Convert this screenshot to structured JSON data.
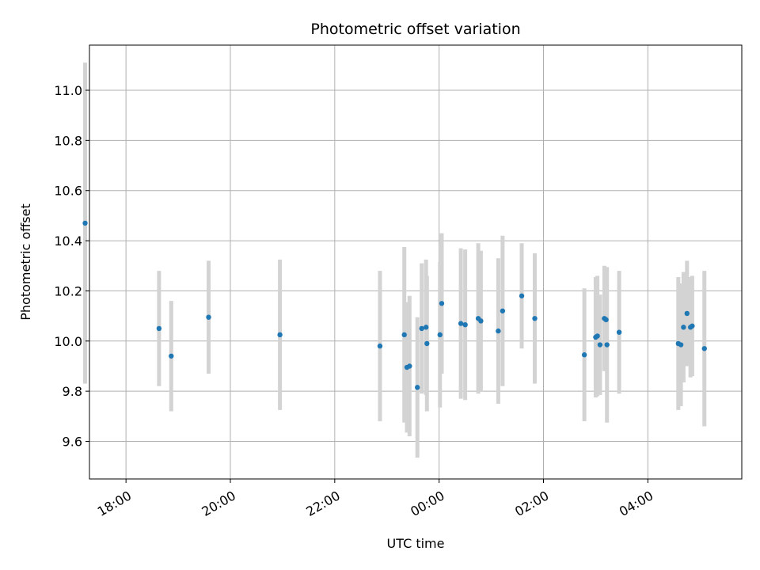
{
  "chart_data": {
    "type": "scatter",
    "title": "Photometric offset variation",
    "xlabel": "UTC time",
    "ylabel": "Photometric offset",
    "xlim": [
      "17:18",
      "05:48"
    ],
    "ylim": [
      9.45,
      11.18
    ],
    "grid": true,
    "x_tick_labels": [
      "18:00",
      "20:00",
      "22:00",
      "00:00",
      "02:00",
      "04:00"
    ],
    "x_tick_hours": [
      18,
      20,
      22,
      24,
      26,
      28
    ],
    "y_ticks": [
      9.6,
      9.8,
      10.0,
      10.2,
      10.4,
      10.6,
      10.8,
      11.0
    ],
    "y_tick_labels": [
      "9.6",
      "9.8",
      "10.0",
      "10.2",
      "10.4",
      "10.6",
      "10.8",
      "11.0"
    ],
    "colors": {
      "point": "#1f77b4",
      "errorbar": "#d3d3d3",
      "grid": "#b0b0b0"
    },
    "points": [
      {
        "t": "17:13",
        "y": 10.47,
        "err": 0.64
      },
      {
        "t": "18:38",
        "y": 10.05,
        "err": 0.23
      },
      {
        "t": "18:52",
        "y": 9.94,
        "err": 0.22
      },
      {
        "t": "19:35",
        "y": 10.095,
        "err": 0.225
      },
      {
        "t": "20:57",
        "y": 10.025,
        "err": 0.3
      },
      {
        "t": "22:52",
        "y": 9.98,
        "err": 0.3
      },
      {
        "t": "23:20",
        "y": 10.025,
        "err": 0.35
      },
      {
        "t": "23:23",
        "y": 9.895,
        "err": 0.26
      },
      {
        "t": "23:26",
        "y": 9.9,
        "err": 0.28
      },
      {
        "t": "23:35",
        "y": 9.815,
        "err": 0.28
      },
      {
        "t": "23:40",
        "y": 10.05,
        "err": 0.26
      },
      {
        "t": "23:45",
        "y": 10.055,
        "err": 0.27
      },
      {
        "t": "23:46",
        "y": 9.99,
        "err": 0.27
      },
      {
        "t": "00:01",
        "y": 10.025,
        "err": 0.29
      },
      {
        "t": "00:03",
        "y": 10.15,
        "err": 0.28
      },
      {
        "t": "00:25",
        "y": 10.07,
        "err": 0.3
      },
      {
        "t": "00:30",
        "y": 10.065,
        "err": 0.3
      },
      {
        "t": "00:45",
        "y": 10.09,
        "err": 0.3
      },
      {
        "t": "00:48",
        "y": 10.08,
        "err": 0.28
      },
      {
        "t": "01:08",
        "y": 10.04,
        "err": 0.29
      },
      {
        "t": "01:13",
        "y": 10.12,
        "err": 0.3
      },
      {
        "t": "01:35",
        "y": 10.18,
        "err": 0.21
      },
      {
        "t": "01:50",
        "y": 10.09,
        "err": 0.26
      },
      {
        "t": "02:47",
        "y": 9.945,
        "err": 0.265
      },
      {
        "t": "03:00",
        "y": 10.015,
        "err": 0.24
      },
      {
        "t": "03:02",
        "y": 10.02,
        "err": 0.24
      },
      {
        "t": "03:05",
        "y": 9.985,
        "err": 0.2
      },
      {
        "t": "03:10",
        "y": 10.09,
        "err": 0.21
      },
      {
        "t": "03:12",
        "y": 10.085,
        "err": 0.2
      },
      {
        "t": "03:13",
        "y": 9.985,
        "err": 0.31
      },
      {
        "t": "03:27",
        "y": 10.035,
        "err": 0.245
      },
      {
        "t": "04:35",
        "y": 9.99,
        "err": 0.265
      },
      {
        "t": "04:38",
        "y": 9.985,
        "err": 0.245
      },
      {
        "t": "04:41",
        "y": 10.055,
        "err": 0.22
      },
      {
        "t": "04:45",
        "y": 10.11,
        "err": 0.21
      },
      {
        "t": "04:49",
        "y": 10.055,
        "err": 0.2
      },
      {
        "t": "04:51",
        "y": 10.06,
        "err": 0.2
      },
      {
        "t": "05:05",
        "y": 9.97,
        "err": 0.31
      }
    ]
  }
}
